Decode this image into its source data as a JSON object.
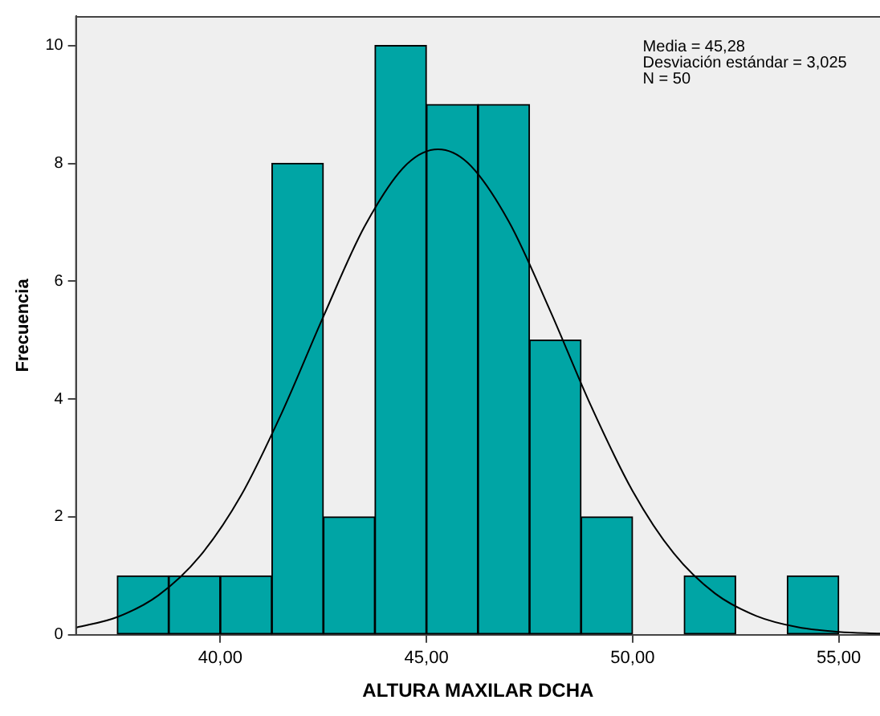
{
  "chart_data": {
    "type": "histogram",
    "xlabel": "ALTURA MAXILAR DCHA",
    "ylabel": "Frecuencia",
    "annotations": [
      "Media = 45,28",
      "Desviación estándar = 3,025",
      "N = 50"
    ],
    "bins": [
      37.5,
      38.75,
      40,
      41.25,
      42.5,
      43.75,
      45,
      46.25,
      47.5,
      48.75,
      50,
      51.25,
      52.5,
      53.75,
      55
    ],
    "series": [
      {
        "type": "histogram",
        "color": "#00a5a5",
        "values": [
          1,
          1,
          1,
          8,
          2,
          10,
          9,
          9,
          5,
          2,
          0,
          1,
          0,
          1
        ]
      },
      {
        "type": "line",
        "color": "#000000",
        "x": [
          36.5,
          37.5,
          38.5,
          39.5,
          40.5,
          41.5,
          42.5,
          43.5,
          44.5,
          45.28,
          46,
          47,
          48,
          49,
          50,
          51,
          52,
          53,
          54,
          55,
          56
        ],
        "values": [
          0.12,
          0.3,
          0.67,
          1.33,
          2.36,
          3.78,
          5.4,
          6.93,
          7.97,
          8.24,
          8.01,
          7.01,
          5.5,
          3.87,
          2.44,
          1.38,
          0.7,
          0.32,
          0.13,
          0.05,
          0.02
        ]
      }
    ],
    "xlim": [
      36.5,
      56
    ],
    "xticks": [
      {
        "value": 40,
        "label": "40,00"
      },
      {
        "value": 45,
        "label": "45,00"
      },
      {
        "value": 50,
        "label": "50,00"
      },
      {
        "value": 55,
        "label": "55,00"
      }
    ],
    "ylim": [
      0,
      10.5
    ],
    "yticks": [
      0,
      2,
      4,
      6,
      8,
      10
    ],
    "grid": false,
    "legend": false,
    "marker": "none",
    "line_style": "solid"
  }
}
